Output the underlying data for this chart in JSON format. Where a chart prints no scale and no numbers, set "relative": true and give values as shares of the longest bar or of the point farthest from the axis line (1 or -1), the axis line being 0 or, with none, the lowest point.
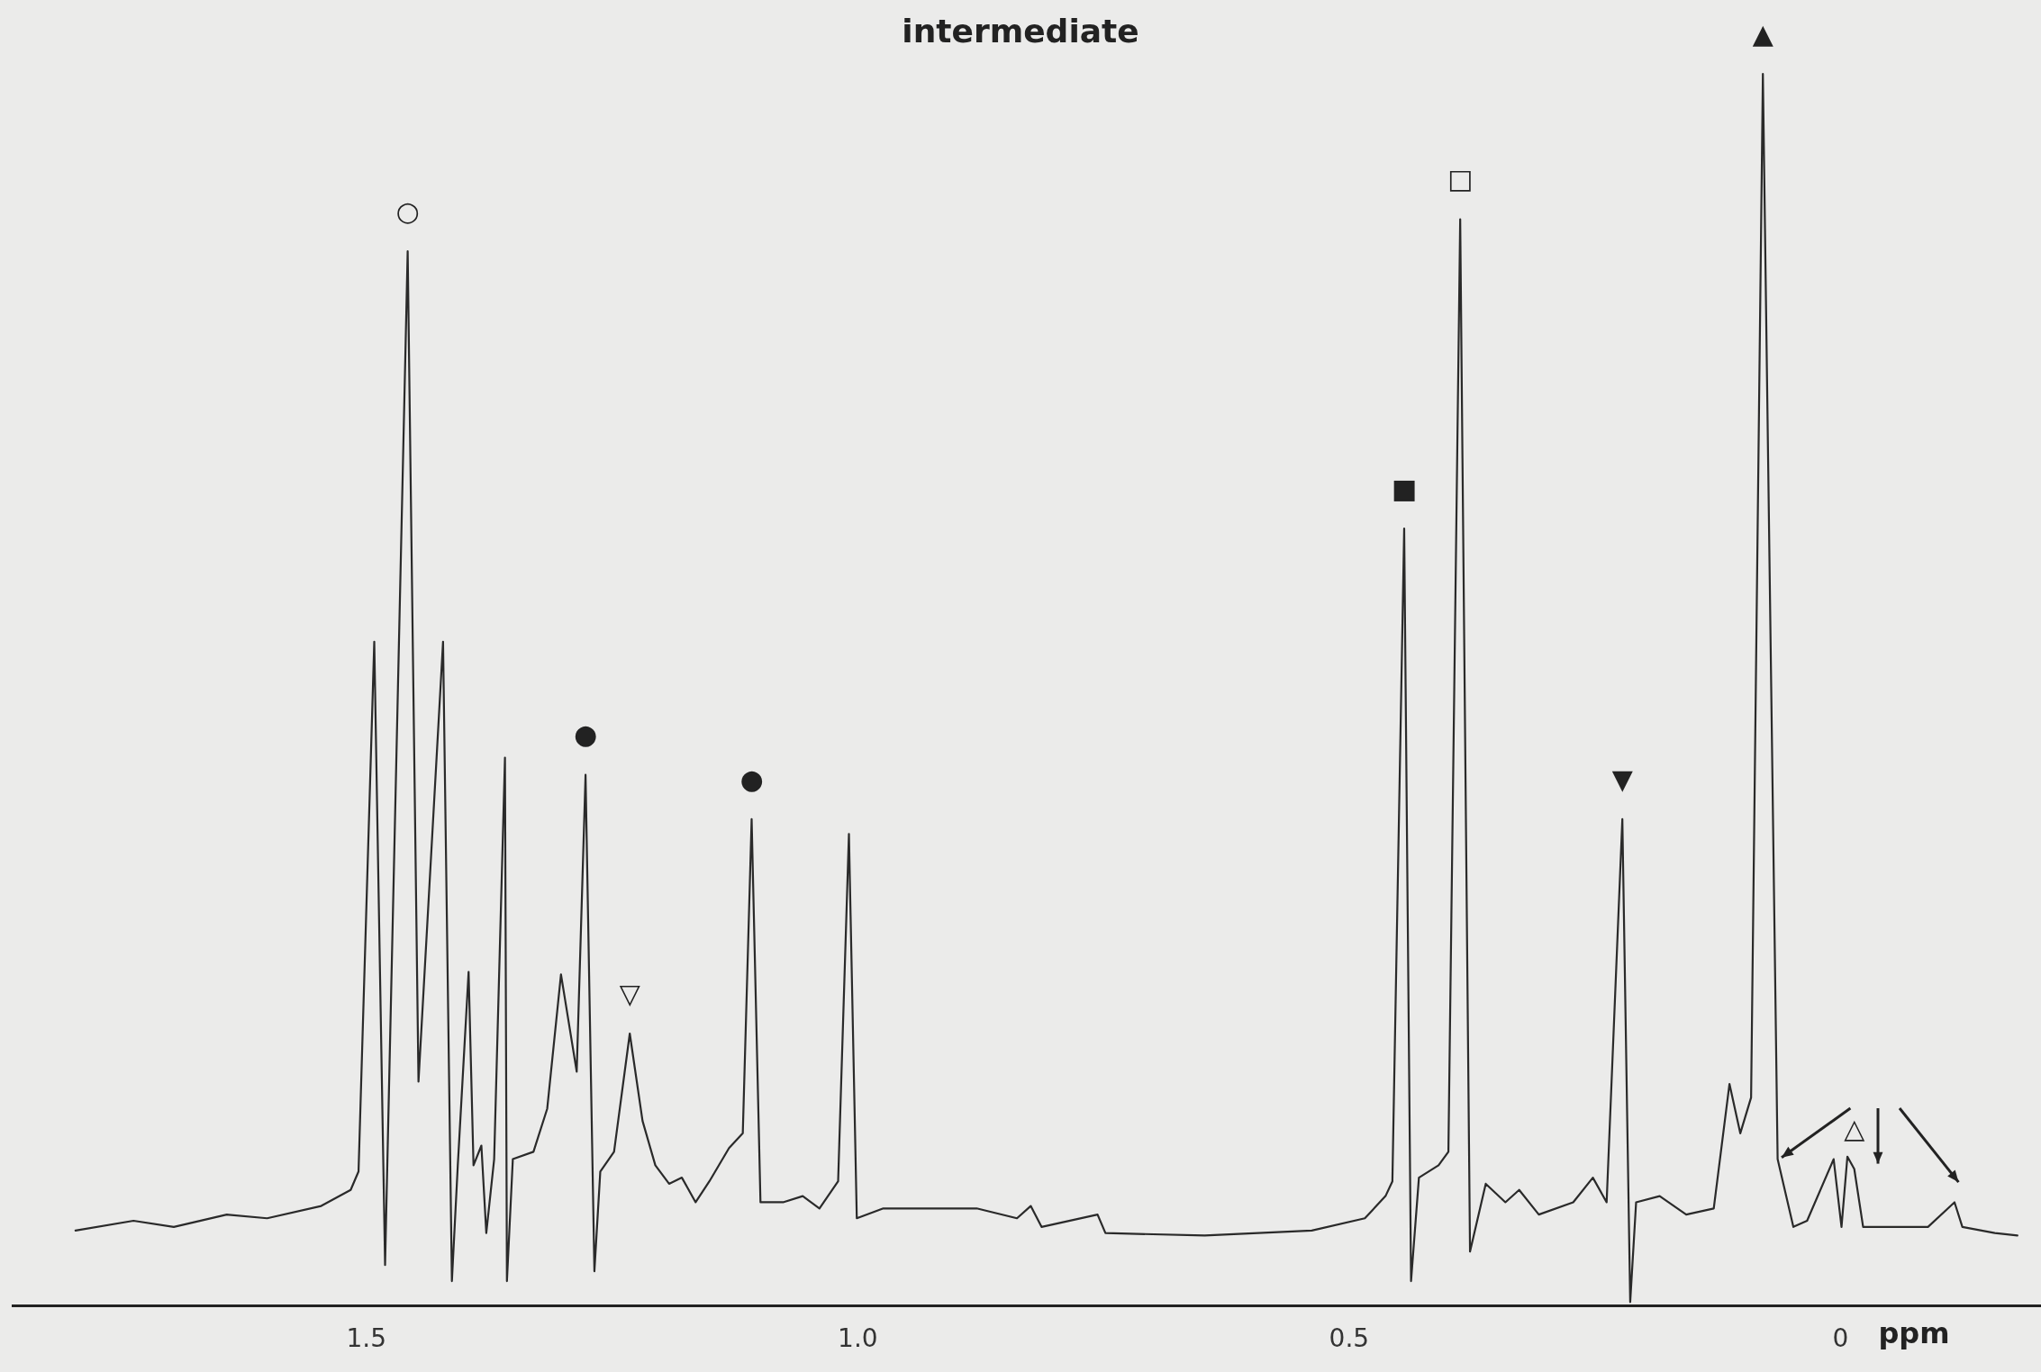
{
  "chart_data": {
    "type": "line",
    "title": "intermediate",
    "xlabel": "ppm",
    "relative": true,
    "color": "#2a2a2a",
    "legend": false,
    "grid": false,
    "marker": "none",
    "line_style": "solid",
    "xlim": [
      1.86,
      -0.204
    ],
    "xticks": [
      {
        "value": 1.5,
        "label": "1.5"
      },
      {
        "value": 1.0,
        "label": "1.0"
      },
      {
        "value": 0.5,
        "label": "0.5"
      },
      0
    ],
    "x": [
      1.796,
      1.737,
      1.696,
      1.642,
      1.601,
      1.546,
      1.516,
      1.508,
      1.492,
      1.481,
      1.458,
      1.447,
      1.422,
      1.413,
      1.407,
      1.396,
      1.391,
      1.383,
      1.378,
      1.37,
      1.359,
      1.357,
      1.351,
      1.33,
      1.316,
      1.302,
      1.286,
      1.277,
      1.268,
      1.262,
      1.248,
      1.232,
      1.219,
      1.206,
      1.192,
      1.179,
      1.165,
      1.151,
      1.131,
      1.117,
      1.108,
      1.099,
      1.076,
      1.056,
      1.039,
      1.02,
      1.009,
      1.001,
      0.974,
      0.92,
      0.879,
      0.838,
      0.824,
      0.813,
      0.756,
      0.748,
      0.647,
      0.538,
      0.484,
      0.463,
      0.456,
      0.444,
      0.437,
      0.429,
      0.409,
      0.399,
      0.387,
      0.377,
      0.361,
      0.341,
      0.327,
      0.307,
      0.272,
      0.252,
      0.238,
      0.222,
      0.214,
      0.208,
      0.184,
      0.157,
      0.129,
      0.113,
      0.102,
      0.091,
      0.079,
      0.064,
      0.048,
      0.034,
      0.007,
      -0.001,
      -0.007,
      -0.014,
      -0.023,
      -0.061,
      -0.089,
      -0.116,
      -0.124,
      -0.157,
      -0.18
    ],
    "values": [
      0.061,
      0.069,
      0.064,
      0.074,
      0.071,
      0.081,
      0.094,
      0.109,
      0.539,
      0.033,
      0.856,
      0.182,
      0.539,
      0.02,
      0.114,
      0.271,
      0.114,
      0.13,
      0.059,
      0.119,
      0.445,
      0.02,
      0.119,
      0.125,
      0.16,
      0.269,
      0.19,
      0.431,
      0.028,
      0.109,
      0.125,
      0.221,
      0.15,
      0.114,
      0.099,
      0.104,
      0.084,
      0.101,
      0.128,
      0.14,
      0.395,
      0.084,
      0.084,
      0.089,
      0.079,
      0.101,
      0.383,
      0.071,
      0.079,
      0.079,
      0.079,
      0.071,
      0.081,
      0.064,
      0.074,
      0.059,
      0.057,
      0.061,
      0.071,
      0.089,
      0.101,
      0.631,
      0.02,
      0.104,
      0.114,
      0.125,
      0.882,
      0.044,
      0.099,
      0.084,
      0.094,
      0.074,
      0.084,
      0.104,
      0.084,
      0.395,
      0.003,
      0.084,
      0.089,
      0.074,
      0.079,
      0.18,
      0.14,
      0.169,
      1.0,
      0.119,
      0.064,
      0.069,
      0.119,
      0.064,
      0.121,
      0.111,
      0.064,
      0.064,
      0.064,
      0.084,
      0.064,
      0.059,
      0.057
    ],
    "annotations": [
      {
        "text": "○",
        "x": 1.458,
        "y": 0.856
      },
      {
        "text": "●",
        "x": 1.277,
        "y": 0.431
      },
      {
        "text": "▽",
        "x": 1.232,
        "y": 0.221
      },
      {
        "text": "●",
        "x": 1.108,
        "y": 0.395
      },
      {
        "text": "■",
        "x": 0.444,
        "y": 0.631
      },
      {
        "text": "□",
        "x": 0.387,
        "y": 0.882
      },
      {
        "text": "▼",
        "x": 0.222,
        "y": 0.395
      },
      {
        "text": "▲",
        "x": 0.079,
        "y": 1.0
      },
      {
        "text": "△",
        "x": -0.014,
        "y": 0.111
      }
    ]
  }
}
